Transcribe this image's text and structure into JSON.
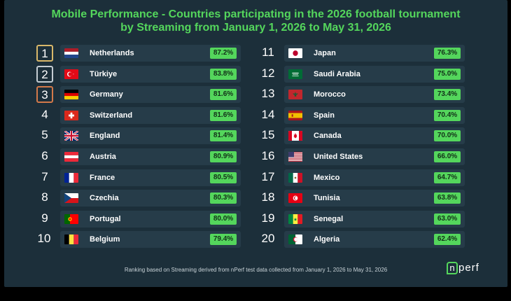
{
  "chart_data": {
    "type": "table",
    "title": "Mobile Performance - Countries participating in the 2026 football tournament",
    "subtitle": "by Streaming from January 1, 2026 to May 31, 2026",
    "rows": [
      {
        "rank": "1",
        "country": "Netherlands",
        "value": "87.2%",
        "flag": "netherlands-flag"
      },
      {
        "rank": "2",
        "country": "Türkiye",
        "value": "83.8%",
        "flag": "turkiye-flag"
      },
      {
        "rank": "3",
        "country": "Germany",
        "value": "81.6%",
        "flag": "germany-flag"
      },
      {
        "rank": "4",
        "country": "Switzerland",
        "value": "81.6%",
        "flag": "switzerland-flag"
      },
      {
        "rank": "5",
        "country": "England",
        "value": "81.4%",
        "flag": "england-flag"
      },
      {
        "rank": "6",
        "country": "Austria",
        "value": "80.9%",
        "flag": "austria-flag"
      },
      {
        "rank": "7",
        "country": "France",
        "value": "80.5%",
        "flag": "france-flag"
      },
      {
        "rank": "8",
        "country": "Czechia",
        "value": "80.3%",
        "flag": "czechia-flag"
      },
      {
        "rank": "9",
        "country": "Portugal",
        "value": "80.0%",
        "flag": "portugal-flag"
      },
      {
        "rank": "10",
        "country": "Belgium",
        "value": "79.4%",
        "flag": "belgium-flag"
      },
      {
        "rank": "11",
        "country": "Japan",
        "value": "76.3%",
        "flag": "japan-flag"
      },
      {
        "rank": "12",
        "country": "Saudi Arabia",
        "value": "75.0%",
        "flag": "saudi-arabia-flag"
      },
      {
        "rank": "13",
        "country": "Morocco",
        "value": "73.4%",
        "flag": "morocco-flag"
      },
      {
        "rank": "14",
        "country": "Spain",
        "value": "70.4%",
        "flag": "spain-flag"
      },
      {
        "rank": "15",
        "country": "Canada",
        "value": "70.0%",
        "flag": "canada-flag"
      },
      {
        "rank": "16",
        "country": "United States",
        "value": "66.0%",
        "flag": "united-states-flag"
      },
      {
        "rank": "17",
        "country": "Mexico",
        "value": "64.7%",
        "flag": "mexico-flag"
      },
      {
        "rank": "18",
        "country": "Tunisia",
        "value": "63.8%",
        "flag": "tunisia-flag"
      },
      {
        "rank": "19",
        "country": "Senegal",
        "value": "63.0%",
        "flag": "senegal-flag"
      },
      {
        "rank": "20",
        "country": "Algeria",
        "value": "62.4%",
        "flag": "algeria-flag"
      }
    ],
    "footnote": "Ranking based on Streaming derived from nPerf test data collected from January 1, 2026 to May 31, 2026"
  },
  "logo": {
    "text": "nperf"
  },
  "colors": {
    "background": "#1c2f3a",
    "row": "#263c49",
    "accent": "#54d65c",
    "gold": "#d9b86a",
    "silver": "#c4ccd2",
    "bronze": "#d3794a"
  }
}
